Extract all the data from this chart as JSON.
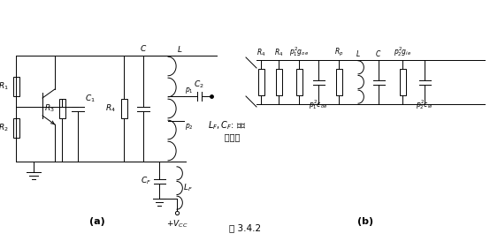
{
  "title": "图 3.4.2",
  "label_a": "(a)",
  "label_b": "(b)",
  "bg_color": "#ffffff",
  "line_color": "#000000",
  "font_size": 6.5,
  "fig_width": 5.54,
  "fig_height": 2.73
}
